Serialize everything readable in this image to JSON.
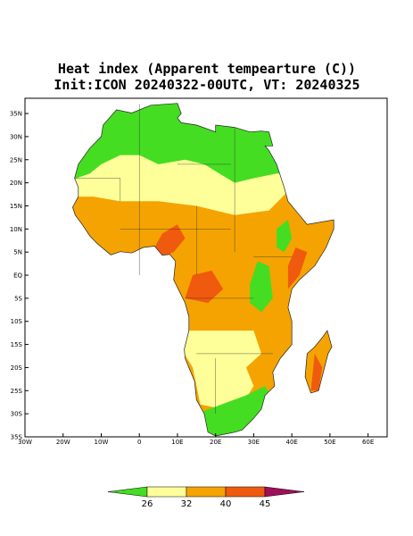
{
  "title": "Heat index (Apparent tempearture (C))",
  "subtitle": "Init:ICON 20240322-00UTC, VT: 20240325",
  "map": {
    "xlim": [
      -30,
      65
    ],
    "ylim": [
      -35,
      38.3
    ],
    "xticks": [
      {
        "value": -30,
        "label": "30W"
      },
      {
        "value": -20,
        "label": "20W"
      },
      {
        "value": -10,
        "label": "10W"
      },
      0,
      {
        "value": 10,
        "label": "10E"
      },
      {
        "value": 20,
        "label": "20E"
      },
      {
        "value": 30,
        "label": "30E"
      },
      {
        "value": 40,
        "label": "40E"
      },
      {
        "value": 50,
        "label": "50E"
      },
      {
        "value": 60,
        "label": "60E"
      }
    ],
    "yticks": [
      {
        "value": 35,
        "label": "35N"
      },
      {
        "value": 30,
        "label": "30N"
      },
      {
        "value": 25,
        "label": "25N"
      },
      {
        "value": 20,
        "label": "20N"
      },
      {
        "value": 15,
        "label": "15N"
      },
      {
        "value": 10,
        "label": "10N"
      },
      {
        "value": 5,
        "label": "5N"
      },
      {
        "value": 0,
        "label": "EQ"
      },
      {
        "value": -5,
        "label": "5S"
      },
      {
        "value": -10,
        "label": "10S"
      },
      {
        "value": -15,
        "label": "15S"
      },
      {
        "value": -20,
        "label": "20S"
      },
      {
        "value": -25,
        "label": "25S"
      },
      {
        "value": -30,
        "label": "30S"
      },
      {
        "value": -35,
        "label": "35S"
      }
    ]
  },
  "colorbar": {
    "levels": [
      26,
      32,
      40,
      45
    ],
    "colors": [
      "#44dd22",
      "#ffff99",
      "#f5a300",
      "#f05a0f",
      "#a0105a"
    ]
  }
}
